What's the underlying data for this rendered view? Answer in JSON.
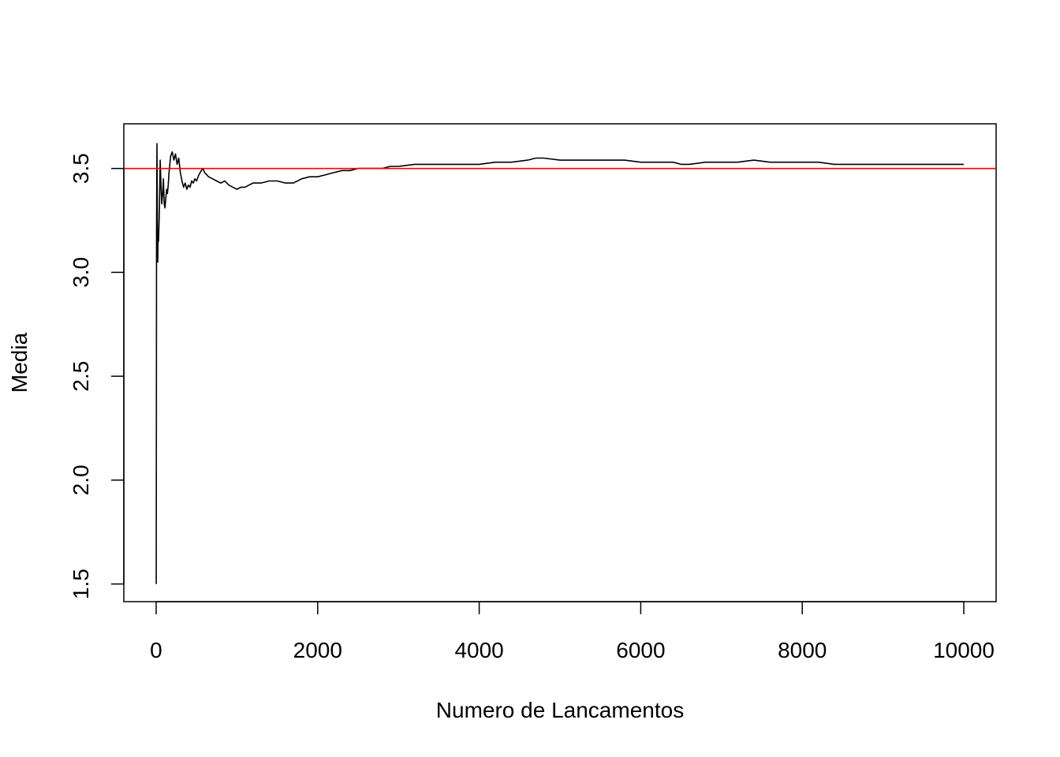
{
  "chart_data": {
    "type": "line",
    "title": "",
    "xlabel": "Numero de Lancamentos",
    "ylabel": "Media",
    "xlim": [
      -400,
      10400
    ],
    "ylim": [
      1.415,
      3.715
    ],
    "x_ticks": [
      0,
      2000,
      4000,
      6000,
      8000,
      10000
    ],
    "x_tick_labels": [
      "0",
      "2000",
      "4000",
      "6000",
      "8000",
      "10000"
    ],
    "y_ticks": [
      1.5,
      2.0,
      2.5,
      3.0,
      3.5
    ],
    "y_tick_labels": [
      "1.5",
      "2.0",
      "2.5",
      "3.0",
      "3.5"
    ],
    "grid": false,
    "series": [
      {
        "color": "#000000",
        "x": [
          1,
          5,
          10,
          15,
          20,
          25,
          30,
          40,
          50,
          60,
          70,
          80,
          90,
          100,
          110,
          120,
          130,
          140,
          150,
          160,
          180,
          200,
          220,
          240,
          260,
          280,
          300,
          320,
          340,
          360,
          380,
          400,
          420,
          440,
          460,
          480,
          500,
          530,
          560,
          580,
          600,
          650,
          700,
          750,
          800,
          850,
          900,
          950,
          1000,
          1050,
          1100,
          1150,
          1200,
          1300,
          1400,
          1500,
          1600,
          1700,
          1800,
          1900,
          2000,
          2100,
          2200,
          2300,
          2400,
          2500,
          2600,
          2700,
          2800,
          2900,
          3000,
          3200,
          3400,
          3600,
          3800,
          4000,
          4200,
          4400,
          4600,
          4700,
          4800,
          5000,
          5200,
          5400,
          5600,
          5800,
          6000,
          6200,
          6400,
          6500,
          6600,
          6800,
          7000,
          7200,
          7400,
          7600,
          7800,
          8000,
          8200,
          8400,
          8600,
          8800,
          9000,
          9200,
          9400,
          9600,
          9800,
          10000
        ],
        "y": [
          1.5,
          3.2,
          3.62,
          3.3,
          3.05,
          3.2,
          3.15,
          3.3,
          3.54,
          3.42,
          3.33,
          3.38,
          3.45,
          3.33,
          3.31,
          3.36,
          3.4,
          3.38,
          3.42,
          3.48,
          3.56,
          3.58,
          3.54,
          3.57,
          3.52,
          3.55,
          3.48,
          3.44,
          3.41,
          3.43,
          3.4,
          3.42,
          3.41,
          3.44,
          3.43,
          3.45,
          3.44,
          3.47,
          3.49,
          3.5,
          3.48,
          3.46,
          3.45,
          3.44,
          3.43,
          3.44,
          3.42,
          3.41,
          3.4,
          3.41,
          3.41,
          3.42,
          3.43,
          3.43,
          3.44,
          3.44,
          3.43,
          3.43,
          3.45,
          3.46,
          3.46,
          3.47,
          3.48,
          3.49,
          3.49,
          3.5,
          3.5,
          3.5,
          3.5,
          3.51,
          3.51,
          3.52,
          3.52,
          3.52,
          3.52,
          3.52,
          3.53,
          3.53,
          3.54,
          3.55,
          3.55,
          3.54,
          3.54,
          3.54,
          3.54,
          3.54,
          3.53,
          3.53,
          3.53,
          3.52,
          3.52,
          3.53,
          3.53,
          3.53,
          3.54,
          3.53,
          3.53,
          3.53,
          3.53,
          3.52,
          3.52,
          3.52,
          3.52,
          3.52,
          3.52,
          3.52,
          3.52,
          3.52
        ]
      }
    ],
    "reference_lines": [
      {
        "orientation": "horizontal",
        "y": 3.5,
        "color": "#ff0000"
      }
    ]
  }
}
